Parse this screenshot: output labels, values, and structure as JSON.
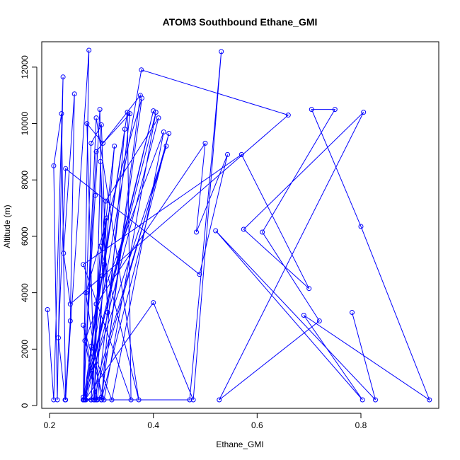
{
  "chart_data": {
    "type": "line",
    "title": "ATOM3 Southbound Ethane_GMI",
    "xlabel": "Ethane_GMI",
    "ylabel": "Altitude (m)",
    "xlim": [
      0.185,
      0.95
    ],
    "ylim": [
      -100,
      12900
    ],
    "xticks": [
      0.2,
      0.4,
      0.6,
      0.8
    ],
    "xtick_labels": [
      "0.2",
      "0.4",
      "0.6",
      "0.8"
    ],
    "yticks": [
      0,
      2000,
      4000,
      6000,
      8000,
      10000,
      12000
    ],
    "ytick_labels": [
      "0",
      "2000",
      "4000",
      "6000",
      "8000",
      "10000",
      "12000"
    ],
    "grid": false,
    "legend": "none",
    "marker": "open-circle",
    "color": "#0000ff",
    "series": [
      {
        "x": [
          0.196,
          0.208,
          0.226,
          0.215,
          0.208,
          0.223,
          0.231,
          0.276,
          0.265,
          0.288,
          0.297,
          0.302,
          0.265,
          0.28,
          0.3,
          0.312,
          0.298,
          0.287,
          0.272,
          0.303,
          0.355,
          0.292,
          0.265,
          0.305,
          0.405,
          0.265,
          0.29,
          0.375,
          0.3,
          0.266,
          0.29,
          0.372,
          0.298,
          0.28,
          0.308,
          0.41,
          0.27,
          0.31,
          0.29,
          0.268,
          0.42,
          0.32,
          0.28,
          0.345,
          0.3,
          0.27,
          0.378,
          0.3,
          0.268,
          0.325,
          0.285,
          0.43,
          0.3,
          0.268,
          0.4,
          0.265,
          0.425,
          0.28,
          0.47,
          0.531,
          0.477,
          0.4,
          0.268,
          0.377,
          0.66,
          0.24,
          0.227,
          0.248,
          0.24,
          0.23,
          0.217,
          0.231,
          0.489,
          0.543,
          0.483,
          0.5,
          0.29,
          0.306,
          0.35,
          0.357,
          0.265,
          0.57,
          0.7,
          0.574,
          0.805,
          0.527,
          0.72,
          0.61,
          0.75,
          0.705,
          0.8,
          0.932,
          0.69,
          0.803,
          0.52,
          0.828,
          0.783
        ],
        "y": [
          3400,
          200,
          11650,
          200,
          8500,
          10350,
          200,
          12600,
          300,
          7450,
          10500,
          4600,
          200,
          9300,
          9950,
          3300,
          8650,
          200,
          10000,
          9300,
          10350,
          200,
          2850,
          200,
          10400,
          200,
          9000,
          11000,
          200,
          200,
          10200,
          200,
          5650,
          200,
          7250,
          10200,
          200,
          6650,
          200,
          2300,
          9700,
          200,
          2100,
          9800,
          200,
          4000,
          10900,
          300,
          200,
          9200,
          200,
          9650,
          200,
          200,
          10450,
          200,
          9200,
          200,
          200,
          12550,
          200,
          3650,
          200,
          11900,
          10300,
          3600,
          5400,
          11050,
          3000,
          200,
          2400,
          8400,
          4650,
          8900,
          6150,
          9300,
          3600,
          5000,
          10400,
          200,
          5000,
          8900,
          4150,
          6250,
          10400,
          200,
          3000,
          6150,
          10500,
          10500,
          6350,
          200,
          3200,
          200,
          6200,
          200,
          3300
        ]
      }
    ]
  }
}
